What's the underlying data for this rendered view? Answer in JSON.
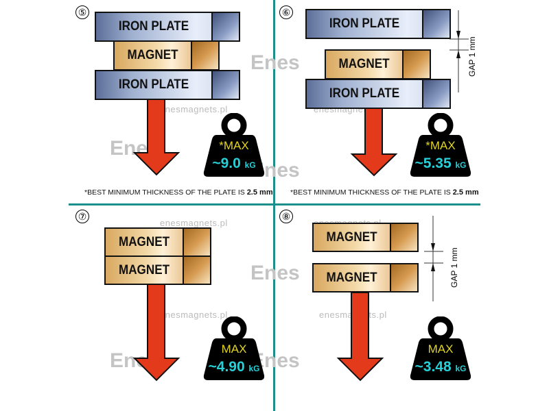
{
  "panels": [
    {
      "number": "⑤",
      "blocks": [
        "IRON PLATE",
        "MAGNET",
        "IRON PLATE"
      ],
      "max_label": "*MAX",
      "value": "~9.0",
      "unit": "kG",
      "footnote": "*BEST MINIMUM THICKNESS OF THE PLATE IS",
      "footnote_value": "2.5 mm"
    },
    {
      "number": "⑥",
      "blocks": [
        "IRON PLATE",
        "MAGNET",
        "IRON PLATE"
      ],
      "gap_label": "GAP  1 mm",
      "max_label": "*MAX",
      "value": "~5.35",
      "unit": "kG",
      "footnote": "*BEST MINIMUM THICKNESS OF THE PLATE IS",
      "footnote_value": "2.5 mm"
    },
    {
      "number": "⑦",
      "blocks": [
        "MAGNET",
        "MAGNET"
      ],
      "max_label": "MAX",
      "value": "~4.90",
      "unit": "kG"
    },
    {
      "number": "⑧",
      "blocks": [
        "MAGNET",
        "MAGNET"
      ],
      "gap_label": "GAP  1 mm",
      "max_label": "MAX",
      "value": "~3.48",
      "unit": "kG"
    }
  ],
  "watermark": {
    "url": "enesmagnets.pl",
    "logo": "Enes"
  },
  "colors": {
    "divider": "#1a8f8c",
    "arrow": "#e23a1a",
    "max": "#e2d420",
    "value": "#27d0d8"
  }
}
